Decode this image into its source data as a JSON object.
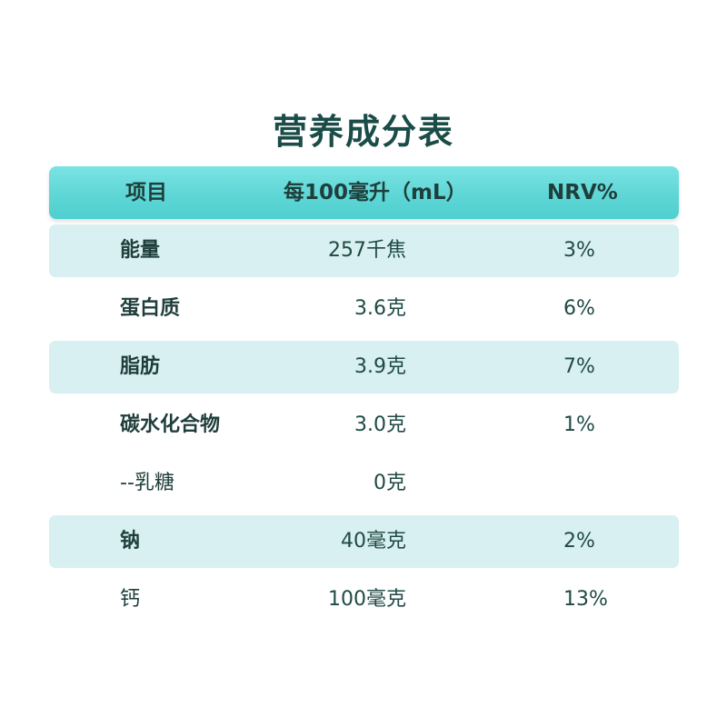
{
  "title": "营养成分表",
  "header": {
    "item": "项目",
    "per100": "每100毫升（mL）",
    "nrv": "NRV%"
  },
  "rows": [
    {
      "name": "能量",
      "value": "257千焦",
      "nrv": "3%"
    },
    {
      "name": "蛋白质",
      "value": "3.6克",
      "nrv": "6%"
    },
    {
      "name": "脂肪",
      "value": "3.9克",
      "nrv": "7%"
    },
    {
      "name": "碳水化合物",
      "value": "3.0克",
      "nrv": "1%"
    },
    {
      "name": "--乳糖",
      "value": "0克",
      "nrv": ""
    },
    {
      "name": "钠",
      "value": "40毫克",
      "nrv": "2%"
    },
    {
      "name": "钙",
      "value": "100毫克",
      "nrv": "13%"
    }
  ],
  "colors": {
    "header_bg": "#5fd6d6",
    "row_shade": "#d8f0f1",
    "text": "#1f4a45"
  }
}
